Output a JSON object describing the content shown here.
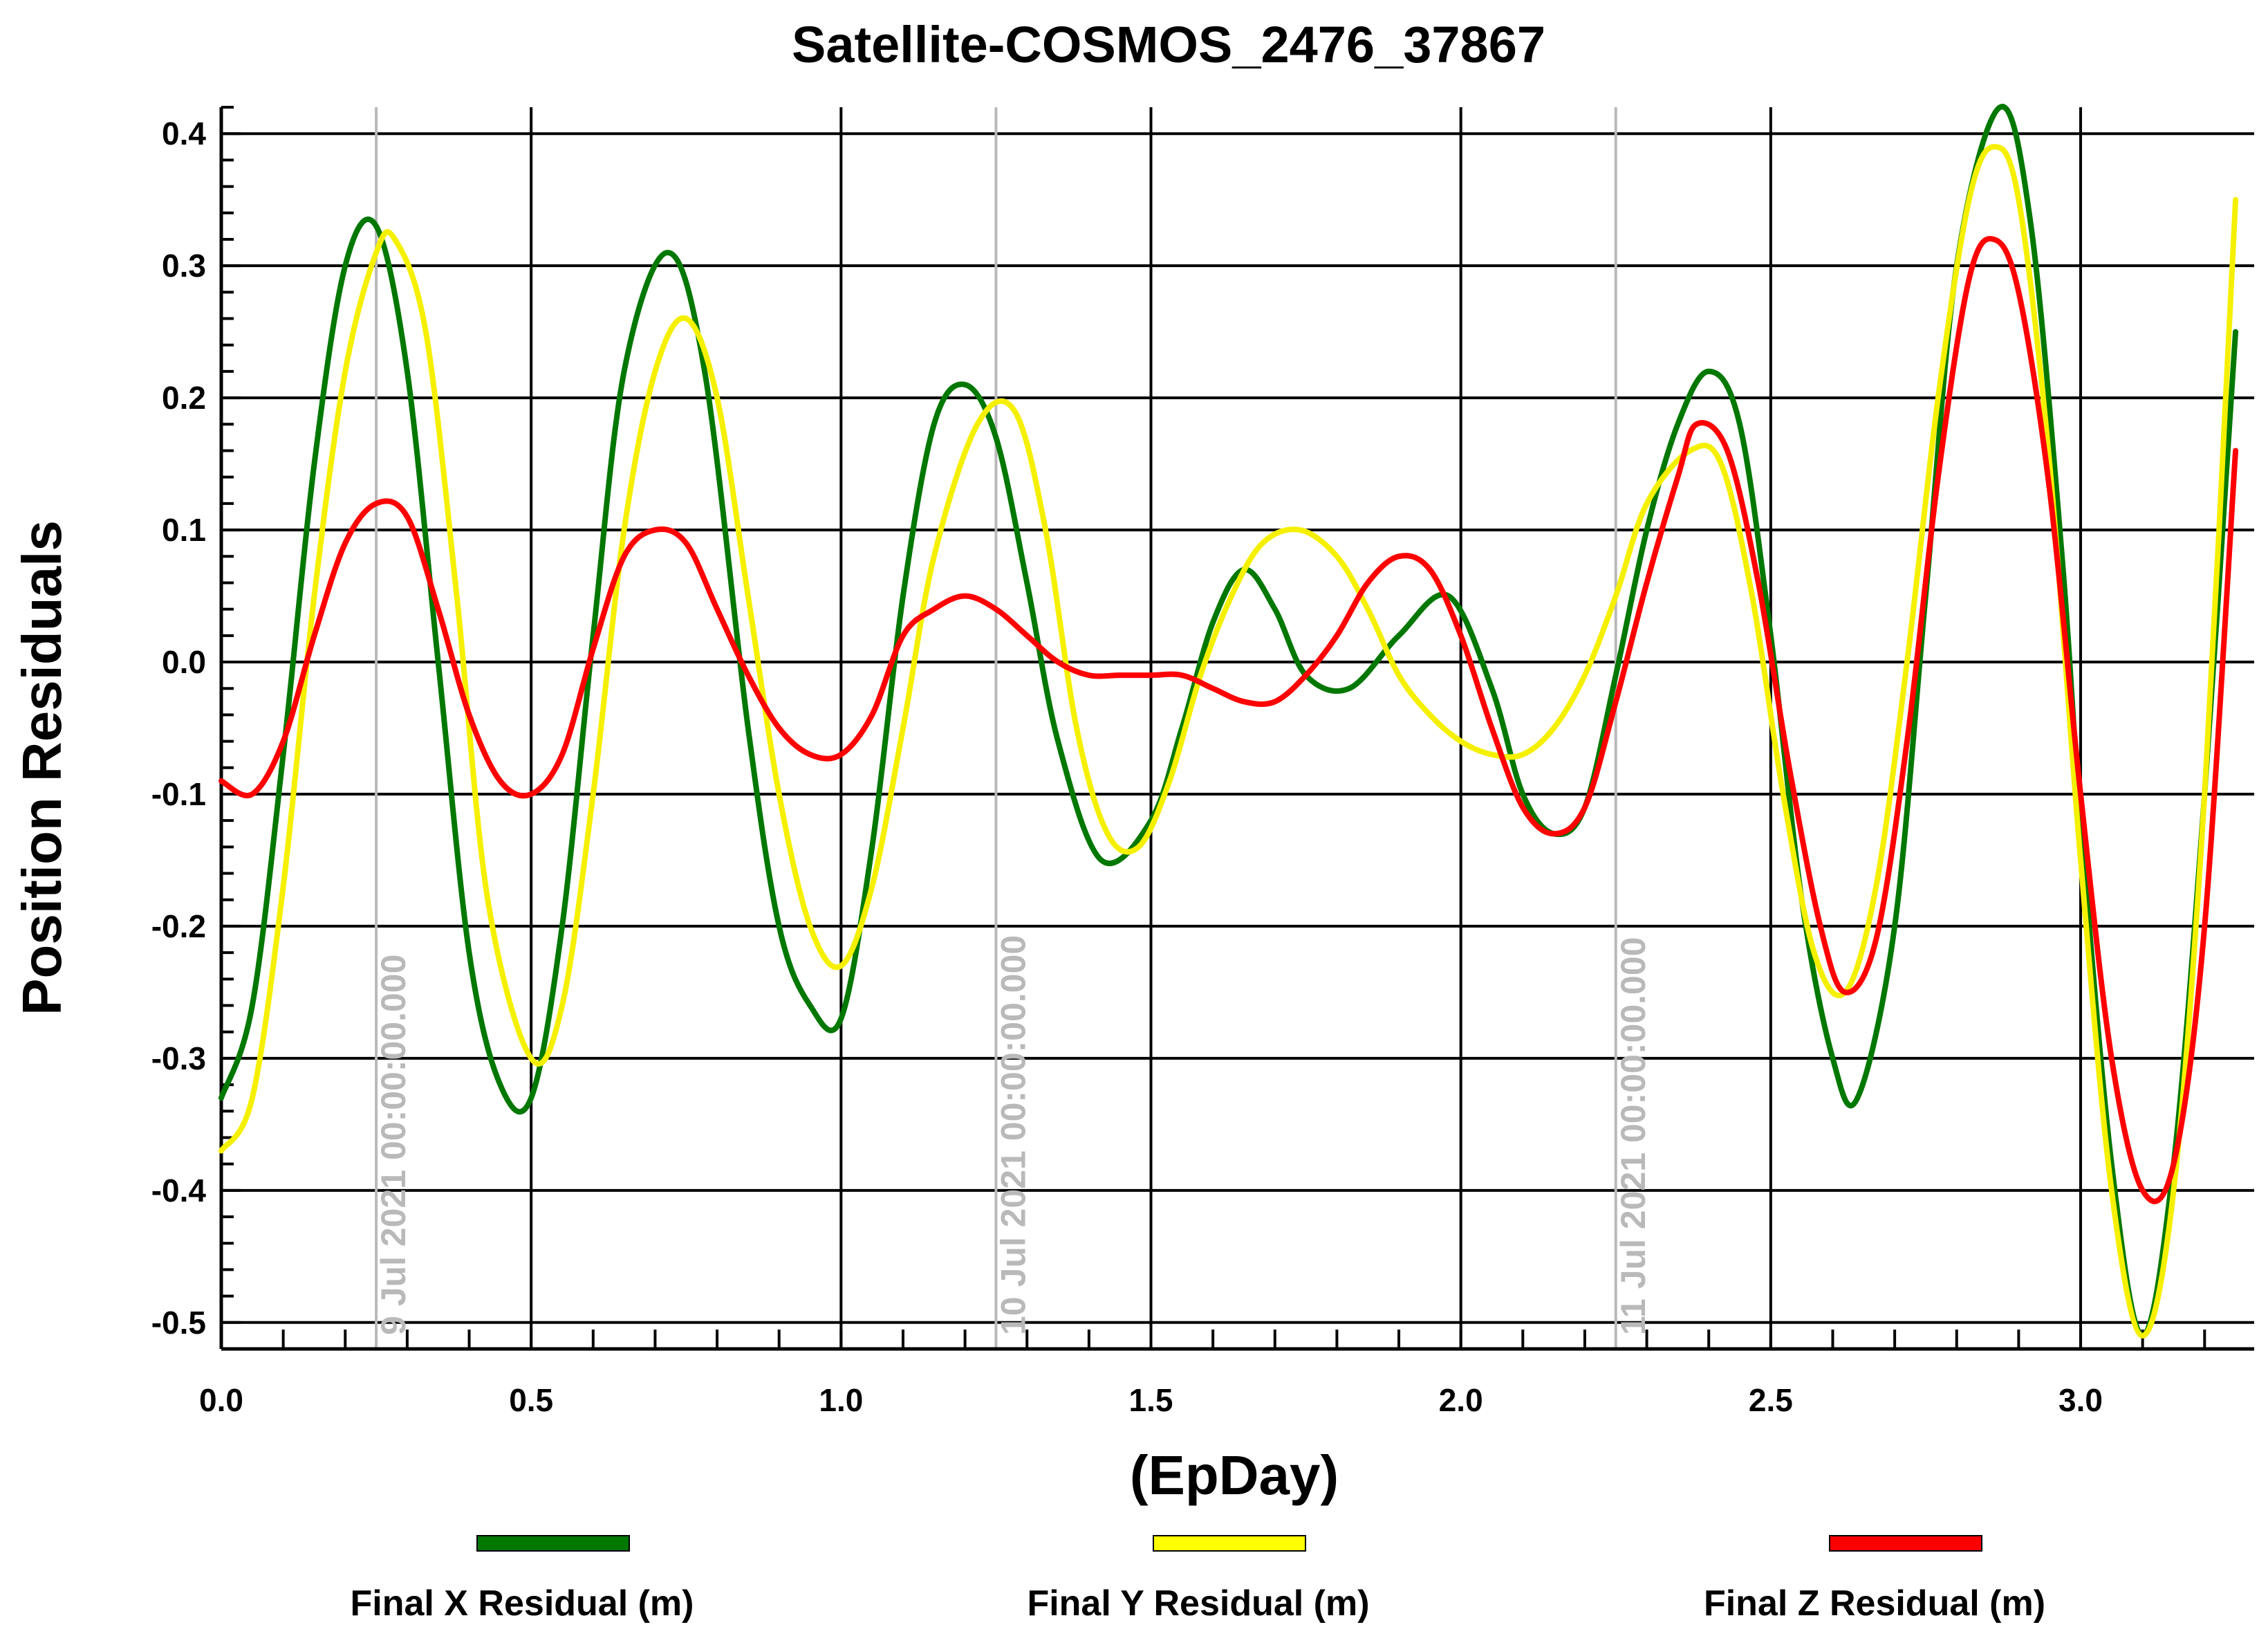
{
  "chart_data": {
    "type": "line",
    "title": "Satellite-COSMOS_2476_37867",
    "xlabel": "(EpDay)",
    "ylabel": "Position Residuals",
    "xlim": [
      0.0,
      3.28
    ],
    "ylim": [
      -0.52,
      0.42
    ],
    "xticks": [
      0.0,
      0.5,
      1.0,
      1.5,
      2.0,
      2.5,
      3.0
    ],
    "xtick_labels": [
      "0.0",
      "0.5",
      "1.0",
      "1.5",
      "2.0",
      "2.5",
      "3.0"
    ],
    "yticks": [
      0.4,
      0.3,
      0.2,
      0.1,
      0.0,
      -0.1,
      -0.2,
      -0.3,
      -0.4,
      -0.5
    ],
    "ytick_labels": [
      "0.4",
      "0.3",
      "0.2",
      "0.1",
      "0.0",
      "-0.1",
      "-0.2",
      "-0.3",
      "-0.4",
      "-0.5"
    ],
    "grid": true,
    "legend_position": "bottom",
    "date_markers": [
      {
        "x": 0.25,
        "label": "9 Jul 2021 00:00:00.000"
      },
      {
        "x": 1.25,
        "label": "10 Jul 2021 00:00:00.000"
      },
      {
        "x": 2.25,
        "label": "11 Jul 2021 00:00:00.000"
      }
    ],
    "series": [
      {
        "name": "Final X Residual (m)",
        "color": "#007800",
        "x": [
          0.0,
          0.05,
          0.1,
          0.15,
          0.2,
          0.25,
          0.3,
          0.35,
          0.4,
          0.45,
          0.5,
          0.55,
          0.6,
          0.65,
          0.72,
          0.78,
          0.85,
          0.9,
          0.95,
          1.0,
          1.05,
          1.1,
          1.15,
          1.2,
          1.25,
          1.3,
          1.35,
          1.42,
          1.5,
          1.55,
          1.6,
          1.65,
          1.7,
          1.75,
          1.82,
          1.9,
          1.98,
          2.05,
          2.1,
          2.15,
          2.2,
          2.25,
          2.3,
          2.35,
          2.4,
          2.45,
          2.5,
          2.55,
          2.6,
          2.64,
          2.7,
          2.75,
          2.8,
          2.87,
          2.92,
          2.97,
          3.0,
          3.05,
          3.1,
          3.15,
          3.2,
          3.25
        ],
        "y": [
          -0.33,
          -0.26,
          -0.07,
          0.15,
          0.3,
          0.33,
          0.22,
          0.0,
          -0.22,
          -0.32,
          -0.33,
          -0.2,
          0.02,
          0.22,
          0.31,
          0.22,
          -0.05,
          -0.2,
          -0.26,
          -0.27,
          -0.14,
          0.05,
          0.18,
          0.21,
          0.17,
          0.06,
          -0.06,
          -0.15,
          -0.12,
          -0.05,
          0.03,
          0.07,
          0.04,
          -0.01,
          -0.02,
          0.02,
          0.05,
          -0.02,
          -0.1,
          -0.13,
          -0.11,
          -0.01,
          0.1,
          0.18,
          0.22,
          0.18,
          0.02,
          -0.18,
          -0.3,
          -0.33,
          -0.2,
          0.05,
          0.3,
          0.42,
          0.33,
          0.08,
          -0.12,
          -0.38,
          -0.51,
          -0.38,
          -0.1,
          0.25
        ]
      },
      {
        "name": "Final Y Residual (m)",
        "color": "#ffff00",
        "x": [
          0.0,
          0.05,
          0.1,
          0.15,
          0.2,
          0.25,
          0.28,
          0.33,
          0.38,
          0.43,
          0.5,
          0.55,
          0.6,
          0.65,
          0.7,
          0.75,
          0.8,
          0.85,
          0.9,
          0.95,
          1.0,
          1.05,
          1.1,
          1.15,
          1.22,
          1.28,
          1.33,
          1.38,
          1.43,
          1.48,
          1.53,
          1.58,
          1.63,
          1.68,
          1.74,
          1.8,
          1.85,
          1.9,
          1.95,
          2.0,
          2.05,
          2.1,
          2.15,
          2.2,
          2.25,
          2.3,
          2.37,
          2.42,
          2.47,
          2.52,
          2.57,
          2.62,
          2.67,
          2.72,
          2.77,
          2.82,
          2.86,
          2.9,
          2.95,
          3.0,
          3.05,
          3.1,
          3.15,
          3.2,
          3.25
        ],
        "y": [
          -0.37,
          -0.33,
          -0.17,
          0.05,
          0.22,
          0.31,
          0.32,
          0.25,
          0.05,
          -0.18,
          -0.3,
          -0.26,
          -0.1,
          0.1,
          0.22,
          0.26,
          0.2,
          0.05,
          -0.1,
          -0.2,
          -0.23,
          -0.17,
          -0.05,
          0.08,
          0.18,
          0.19,
          0.1,
          -0.05,
          -0.13,
          -0.14,
          -0.09,
          -0.01,
          0.05,
          0.09,
          0.1,
          0.08,
          0.04,
          -0.01,
          -0.04,
          -0.06,
          -0.07,
          -0.07,
          -0.05,
          -0.01,
          0.05,
          0.12,
          0.16,
          0.15,
          0.05,
          -0.1,
          -0.22,
          -0.25,
          -0.17,
          0.0,
          0.2,
          0.35,
          0.39,
          0.35,
          0.15,
          -0.15,
          -0.4,
          -0.51,
          -0.4,
          -0.1,
          0.35
        ]
      },
      {
        "name": "Final Z Residual (m)",
        "color": "#ff0000",
        "x": [
          0.0,
          0.05,
          0.1,
          0.15,
          0.2,
          0.25,
          0.3,
          0.35,
          0.4,
          0.45,
          0.5,
          0.55,
          0.6,
          0.65,
          0.7,
          0.75,
          0.8,
          0.85,
          0.9,
          0.95,
          1.0,
          1.05,
          1.1,
          1.15,
          1.2,
          1.25,
          1.3,
          1.35,
          1.4,
          1.45,
          1.5,
          1.55,
          1.6,
          1.65,
          1.7,
          1.75,
          1.8,
          1.85,
          1.9,
          1.95,
          2.0,
          2.05,
          2.1,
          2.15,
          2.2,
          2.25,
          2.3,
          2.35,
          2.38,
          2.43,
          2.48,
          2.53,
          2.58,
          2.62,
          2.67,
          2.72,
          2.77,
          2.82,
          2.86,
          2.9,
          2.95,
          3.0,
          3.05,
          3.1,
          3.15,
          3.2,
          3.25
        ],
        "y": [
          -0.09,
          -0.1,
          -0.06,
          0.02,
          0.09,
          0.12,
          0.11,
          0.04,
          -0.04,
          -0.09,
          -0.1,
          -0.07,
          0.01,
          0.08,
          0.1,
          0.09,
          0.04,
          -0.01,
          -0.05,
          -0.07,
          -0.07,
          -0.04,
          0.02,
          0.04,
          0.05,
          0.04,
          0.02,
          0.0,
          -0.01,
          -0.01,
          -0.01,
          -0.01,
          -0.02,
          -0.03,
          -0.03,
          -0.01,
          0.02,
          0.06,
          0.08,
          0.07,
          0.02,
          -0.05,
          -0.11,
          -0.13,
          -0.11,
          -0.03,
          0.06,
          0.14,
          0.18,
          0.16,
          0.06,
          -0.08,
          -0.2,
          -0.25,
          -0.21,
          -0.06,
          0.14,
          0.29,
          0.32,
          0.28,
          0.13,
          -0.1,
          -0.3,
          -0.4,
          -0.38,
          -0.2,
          0.16
        ]
      }
    ]
  }
}
